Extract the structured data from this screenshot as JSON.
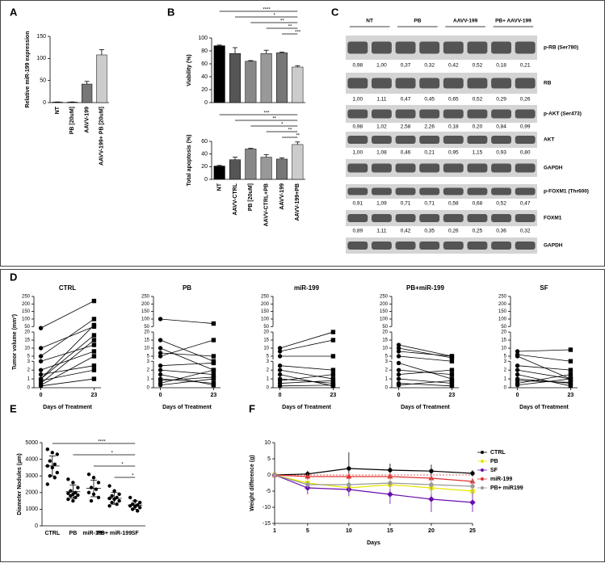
{
  "panel_labels": [
    "A",
    "B",
    "C",
    "D",
    "E",
    "F"
  ],
  "chart_data": [
    {
      "type": "bar",
      "y_label": "Relative miR-199 expression",
      "categories": [
        "NT",
        "PB [20uM]",
        "AAVV-199",
        "AAVV-199+ PB [20uM]"
      ],
      "values": [
        1,
        1,
        42,
        108
      ],
      "errors": [
        0.5,
        0.5,
        6,
        12
      ],
      "colors": [
        "#000000",
        "#333333",
        "#777777",
        "#cccccc"
      ],
      "ylim": [
        0,
        150
      ],
      "yticks": [
        0,
        50,
        100,
        150
      ]
    },
    {
      "type": "bar",
      "y_label": "Viability (%)",
      "values": [
        88,
        76,
        64,
        76,
        77,
        55
      ],
      "errors": [
        1,
        9,
        1,
        5,
        1,
        2
      ],
      "colors": [
        "#000000",
        "#555555",
        "#888888",
        "#999999",
        "#777777",
        "#cccccc"
      ],
      "ylim": [
        0,
        100
      ],
      "yticks": [
        0,
        20,
        40,
        60,
        80,
        100
      ],
      "significance": [
        {
          "label": "****",
          "from": 0,
          "to": 5
        },
        {
          "label": "*",
          "from": 1,
          "to": 5
        },
        {
          "label": "**",
          "from": 2,
          "to": 5
        },
        {
          "label": "**",
          "from": 3,
          "to": 5
        },
        {
          "label": "***",
          "from": 4,
          "to": 5
        }
      ]
    },
    {
      "type": "bar",
      "y_label": "Total apoptosis (%)",
      "categories": [
        "NT",
        "AAVV-CTRL",
        "PB [20uM]",
        "AAVV-CTRL+PB",
        "AAVV-199",
        "AAVV-199+PB"
      ],
      "values": [
        21,
        31,
        48,
        35,
        32,
        55
      ],
      "errors": [
        1,
        4,
        1,
        4,
        2,
        4
      ],
      "colors": [
        "#000000",
        "#555555",
        "#888888",
        "#999999",
        "#777777",
        "#cccccc"
      ],
      "ylim": [
        0,
        60
      ],
      "yticks": [
        0,
        20,
        40,
        60
      ],
      "significance": [
        {
          "label": "***",
          "from": 0,
          "to": 5
        },
        {
          "label": "**",
          "from": 1,
          "to": 5
        },
        {
          "label": "*",
          "from": 2,
          "to": 5
        },
        {
          "label": "**",
          "from": 3,
          "to": 5
        },
        {
          "label": "**",
          "from": 4,
          "to": 5
        }
      ]
    },
    {
      "type": "line",
      "title": "CTRL",
      "y_label": "Tumor volume (mm³)",
      "x_label": "Days of Treatment",
      "x": [
        0,
        23
      ],
      "xlim": [
        -3,
        26
      ],
      "xticks": [
        0,
        23
      ],
      "y_segments": [
        [
          0,
          3
        ],
        [
          3,
          20
        ],
        [
          50,
          250
        ]
      ],
      "yticks": [
        0,
        1,
        2,
        3,
        5,
        10,
        15,
        20,
        50,
        100,
        150,
        200,
        250
      ],
      "color": "#000000",
      "series": [
        {
          "values": [
            40,
            220
          ]
        },
        {
          "values": [
            1,
            60
          ]
        },
        {
          "values": [
            5,
            100
          ]
        },
        {
          "values": [
            0.5,
            15
          ]
        },
        {
          "values": [
            2,
            8
          ]
        },
        {
          "values": [
            1,
            18
          ]
        },
        {
          "values": [
            0.3,
            5
          ]
        },
        {
          "values": [
            1.5,
            2.5
          ]
        },
        {
          "values": [
            0.2,
            1
          ]
        },
        {
          "values": [
            3,
            12
          ]
        },
        {
          "values": [
            0.8,
            2
          ]
        },
        {
          "values": [
            10,
            50
          ]
        }
      ]
    },
    {
      "type": "line",
      "title": "PB",
      "x_label": "Days of Treatment",
      "x": [
        0,
        23
      ],
      "xlim": [
        -3,
        26
      ],
      "xticks": [
        0,
        23
      ],
      "y_segments": [
        [
          0,
          3
        ],
        [
          3,
          20
        ],
        [
          50,
          250
        ]
      ],
      "yticks": [
        0,
        1,
        2,
        3,
        5,
        10,
        15,
        20,
        50,
        100,
        150,
        200,
        250
      ],
      "color": "#000000",
      "series": [
        {
          "values": [
            100,
            70
          ]
        },
        {
          "values": [
            10,
            2
          ]
        },
        {
          "values": [
            5,
            15
          ]
        },
        {
          "values": [
            1,
            0.5
          ]
        },
        {
          "values": [
            2,
            1.5
          ]
        },
        {
          "values": [
            0.5,
            2
          ]
        },
        {
          "values": [
            15,
            3
          ]
        },
        {
          "values": [
            1.5,
            0.3
          ]
        },
        {
          "values": [
            0.3,
            1
          ]
        },
        {
          "values": [
            2.5,
            2.8
          ]
        },
        {
          "values": [
            7,
            5
          ]
        },
        {
          "values": [
            0.8,
            1.2
          ]
        }
      ]
    },
    {
      "type": "line",
      "title": "miR-199",
      "x_label": "Days of Treatment",
      "x": [
        0,
        23
      ],
      "xlim": [
        -3,
        26
      ],
      "xticks": [
        0,
        23
      ],
      "y_segments": [
        [
          0,
          3
        ],
        [
          3,
          20
        ],
        [
          50,
          250
        ]
      ],
      "yticks": [
        0,
        1,
        2,
        3,
        5,
        10,
        15,
        20,
        50,
        100,
        150,
        200,
        250
      ],
      "color": "#000000",
      "series": [
        {
          "values": [
            10,
            20
          ]
        },
        {
          "values": [
            8,
            15
          ]
        },
        {
          "values": [
            5,
            5
          ]
        },
        {
          "values": [
            1,
            0.5
          ]
        },
        {
          "values": [
            2,
            1
          ]
        },
        {
          "values": [
            0.5,
            0.8
          ]
        },
        {
          "values": [
            0.2,
            0.3
          ]
        },
        {
          "values": [
            2.5,
            2
          ]
        },
        {
          "values": [
            1.5,
            0.2
          ]
        },
        {
          "values": [
            0.8,
            1.5
          ]
        }
      ]
    },
    {
      "type": "line",
      "title": "PB+miR-199",
      "x_label": "Days of Treatment",
      "x": [
        0,
        23
      ],
      "xlim": [
        -3,
        26
      ],
      "xticks": [
        0,
        23
      ],
      "y_segments": [
        [
          0,
          3
        ],
        [
          3,
          20
        ],
        [
          50,
          250
        ]
      ],
      "yticks": [
        0,
        1,
        2,
        3,
        5,
        10,
        15,
        20,
        50,
        100,
        150,
        200,
        250
      ],
      "color": "#000000",
      "series": [
        {
          "values": [
            12,
            5
          ]
        },
        {
          "values": [
            10,
            4
          ]
        },
        {
          "values": [
            8,
            5
          ]
        },
        {
          "values": [
            5,
            3
          ]
        },
        {
          "values": [
            2.8,
            1
          ]
        },
        {
          "values": [
            2,
            1.5
          ]
        },
        {
          "values": [
            1,
            0.5
          ]
        },
        {
          "values": [
            0.5,
            0.2
          ]
        },
        {
          "values": [
            1.5,
            2
          ]
        },
        {
          "values": [
            0.3,
            0.8
          ]
        }
      ]
    },
    {
      "type": "line",
      "title": "SF",
      "x_label": "Days of Treatment",
      "x": [
        0,
        23
      ],
      "xlim": [
        -3,
        26
      ],
      "xticks": [
        0,
        23
      ],
      "y_segments": [
        [
          0,
          3
        ],
        [
          3,
          20
        ],
        [
          50,
          250
        ]
      ],
      "yticks": [
        0,
        1,
        2,
        3,
        5,
        10,
        15,
        20,
        50,
        100,
        150,
        200,
        250
      ],
      "color": "#000000",
      "series": [
        {
          "values": [
            8,
            9
          ]
        },
        {
          "values": [
            6,
            3
          ]
        },
        {
          "values": [
            5,
            1
          ]
        },
        {
          "values": [
            2,
            1
          ]
        },
        {
          "values": [
            1,
            0.5
          ]
        },
        {
          "values": [
            0.5,
            1.5
          ]
        },
        {
          "values": [
            2.5,
            2
          ]
        },
        {
          "values": [
            1.5,
            0.2
          ]
        },
        {
          "values": [
            0.3,
            1
          ]
        },
        {
          "values": [
            0.8,
            0.6
          ]
        }
      ]
    },
    {
      "type": "strip",
      "y_label": "Diameter Nodules (µm)",
      "categories": [
        "CTRL",
        "PB",
        "miR-199",
        "PB+ miR-199",
        "SF"
      ],
      "points": [
        [
          4600,
          4400,
          4300,
          3900,
          3700,
          3600,
          3500,
          3200,
          3000,
          2900,
          2500
        ],
        [
          2800,
          2600,
          2300,
          2100,
          2000,
          1950,
          1900,
          1850,
          1800,
          1700,
          1600,
          1500
        ],
        [
          3100,
          2900,
          2600,
          2300,
          2200,
          2000,
          1900,
          1700,
          1500
        ],
        [
          2400,
          2100,
          1900,
          1800,
          1700,
          1650,
          1600,
          1500,
          1400,
          1300,
          1200
        ],
        [
          1700,
          1500,
          1400,
          1300,
          1250,
          1200,
          1150,
          1100,
          1000,
          900
        ]
      ],
      "means": [
        3600,
        2050,
        2250,
        1650,
        1250
      ],
      "sds": [
        600,
        400,
        500,
        350,
        250
      ],
      "ylim": [
        0,
        5000
      ],
      "yticks": [
        0,
        1000,
        2000,
        3000,
        4000,
        5000
      ],
      "significance": [
        {
          "label": "****",
          "from": 0,
          "to": 4
        },
        {
          "label": "*",
          "from": 1,
          "to": 4
        },
        {
          "label": "*",
          "from": 2,
          "to": 4
        },
        {
          "label": "*",
          "from": 3,
          "to": 4
        }
      ]
    },
    {
      "type": "line",
      "x_label": "Days",
      "y_label": "Weight difference (g)",
      "x": [
        1,
        5,
        10,
        15,
        20,
        25
      ],
      "xlim": [
        1,
        25
      ],
      "xticks": [
        1,
        5,
        10,
        15,
        20,
        25
      ],
      "ylim": [
        -15,
        10
      ],
      "yticks": [
        -15,
        -10,
        -5,
        0,
        5,
        10
      ],
      "legend": "upper right",
      "series": [
        {
          "name": "CTRL",
          "color": "#000000",
          "marker": "circle",
          "values": [
            0,
            0.3,
            2,
            1.5,
            1.2,
            0.5
          ],
          "errors": [
            0,
            1,
            5,
            2,
            2,
            1
          ]
        },
        {
          "name": "PB",
          "color": "#e6e600",
          "marker": "square",
          "values": [
            0,
            -2.5,
            -4,
            -3,
            -4,
            -5
          ],
          "errors": [
            0,
            1,
            3,
            2,
            3,
            2
          ]
        },
        {
          "name": "SF",
          "color": "#6a0dad",
          "marker": "diamond",
          "values": [
            0,
            -4,
            -4.5,
            -6,
            -7.5,
            -8.5
          ],
          "errors": [
            0,
            2,
            2,
            3,
            4,
            3
          ]
        },
        {
          "name": "miR-199",
          "color": "#e03030",
          "marker": "triangle",
          "values": [
            0,
            -0.5,
            -0.5,
            -0.5,
            -1,
            -2
          ],
          "errors": [
            0,
            1,
            1,
            1,
            1,
            1
          ]
        },
        {
          "name": "PB+ miR199",
          "color": "#999999",
          "marker": "circle",
          "values": [
            0,
            -3,
            -3,
            -2.5,
            -3,
            -3.5
          ],
          "errors": [
            0,
            1,
            2,
            2,
            3,
            2
          ]
        }
      ]
    }
  ],
  "blot": {
    "groups": [
      "NT",
      "PB",
      "AAVV-199",
      "PB+ AAVV-199"
    ],
    "rows": [
      {
        "label": "p-RB (Ser780)",
        "quant": [
          "0,98",
          "1,00",
          "0,37",
          "0,32",
          "0,42",
          "0,52",
          "0,18",
          "0,21"
        ]
      },
      {
        "label": "RB",
        "quant": [
          "1,00",
          "1,11",
          "0,47",
          "0,45",
          "0,65",
          "0,52",
          "0,29",
          "0,26"
        ]
      },
      {
        "label": "p-AKT (Ser473)",
        "quant": [
          "0,98",
          "1,02",
          "2,58",
          "2,26",
          "0,18",
          "0,20",
          "0,84",
          "0,99"
        ]
      },
      {
        "label": "AKT",
        "quant": [
          "1,00",
          "1,08",
          "0,46",
          "0,21",
          "0,95",
          "1,15",
          "0,93",
          "0,80"
        ]
      },
      {
        "label": "GAPDH"
      },
      {
        "label": "p-FOXM1 (Thr600)",
        "quant": [
          "0,91",
          "1,09",
          "0,71",
          "0,71",
          "0,58",
          "0,68",
          "0,52",
          "0,47"
        ]
      },
      {
        "label": "FOXM1",
        "quant": [
          "0,89",
          "1,11",
          "0,42",
          "0,35",
          "0,26",
          "0,25",
          "0,36",
          "0,32"
        ]
      },
      {
        "label": "GAPDH"
      }
    ]
  }
}
